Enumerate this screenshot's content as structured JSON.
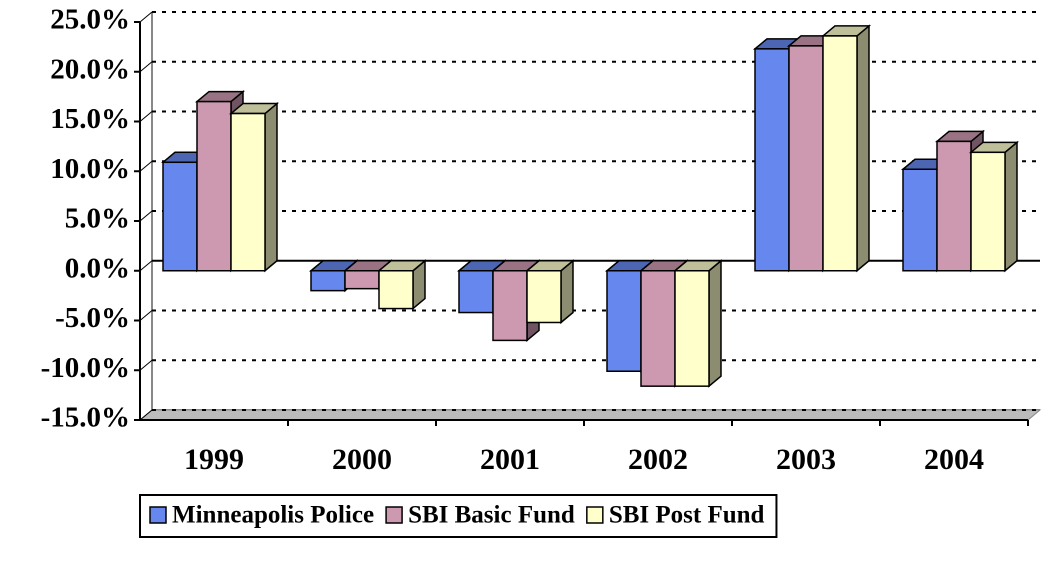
{
  "chart_data": {
    "type": "bar",
    "categories": [
      "1999",
      "2000",
      "2001",
      "2002",
      "2003",
      "2004"
    ],
    "series": [
      {
        "name": "Minneapolis Police",
        "color": "#6688ee",
        "values": [
          10.9,
          -2.0,
          -4.2,
          -10.1,
          22.3,
          10.2
        ]
      },
      {
        "name": "SBI Basic Fund",
        "color": "#cc99b0",
        "values": [
          17.0,
          -1.8,
          -7.0,
          -11.6,
          22.6,
          13.0
        ]
      },
      {
        "name": "SBI Post Fund",
        "color": "#ffffcc",
        "values": [
          15.8,
          -3.8,
          -5.2,
          -11.6,
          23.6,
          11.9
        ]
      }
    ],
    "ylim": [
      -15,
      25
    ],
    "yticks": [
      {
        "value": -15,
        "label": "-15.0%"
      },
      {
        "value": -10,
        "label": "-10.0%"
      },
      {
        "value": -5,
        "label": "-5.0%"
      },
      {
        "value": 0,
        "label": "0.0%"
      },
      {
        "value": 5,
        "label": "5.0%"
      },
      {
        "value": 10,
        "label": "10.0%"
      },
      {
        "value": 15,
        "label": "15.0%"
      },
      {
        "value": 20,
        "label": "20.0%"
      },
      {
        "value": 25,
        "label": "25.0%"
      }
    ],
    "grid": true,
    "legend": "bottom"
  }
}
